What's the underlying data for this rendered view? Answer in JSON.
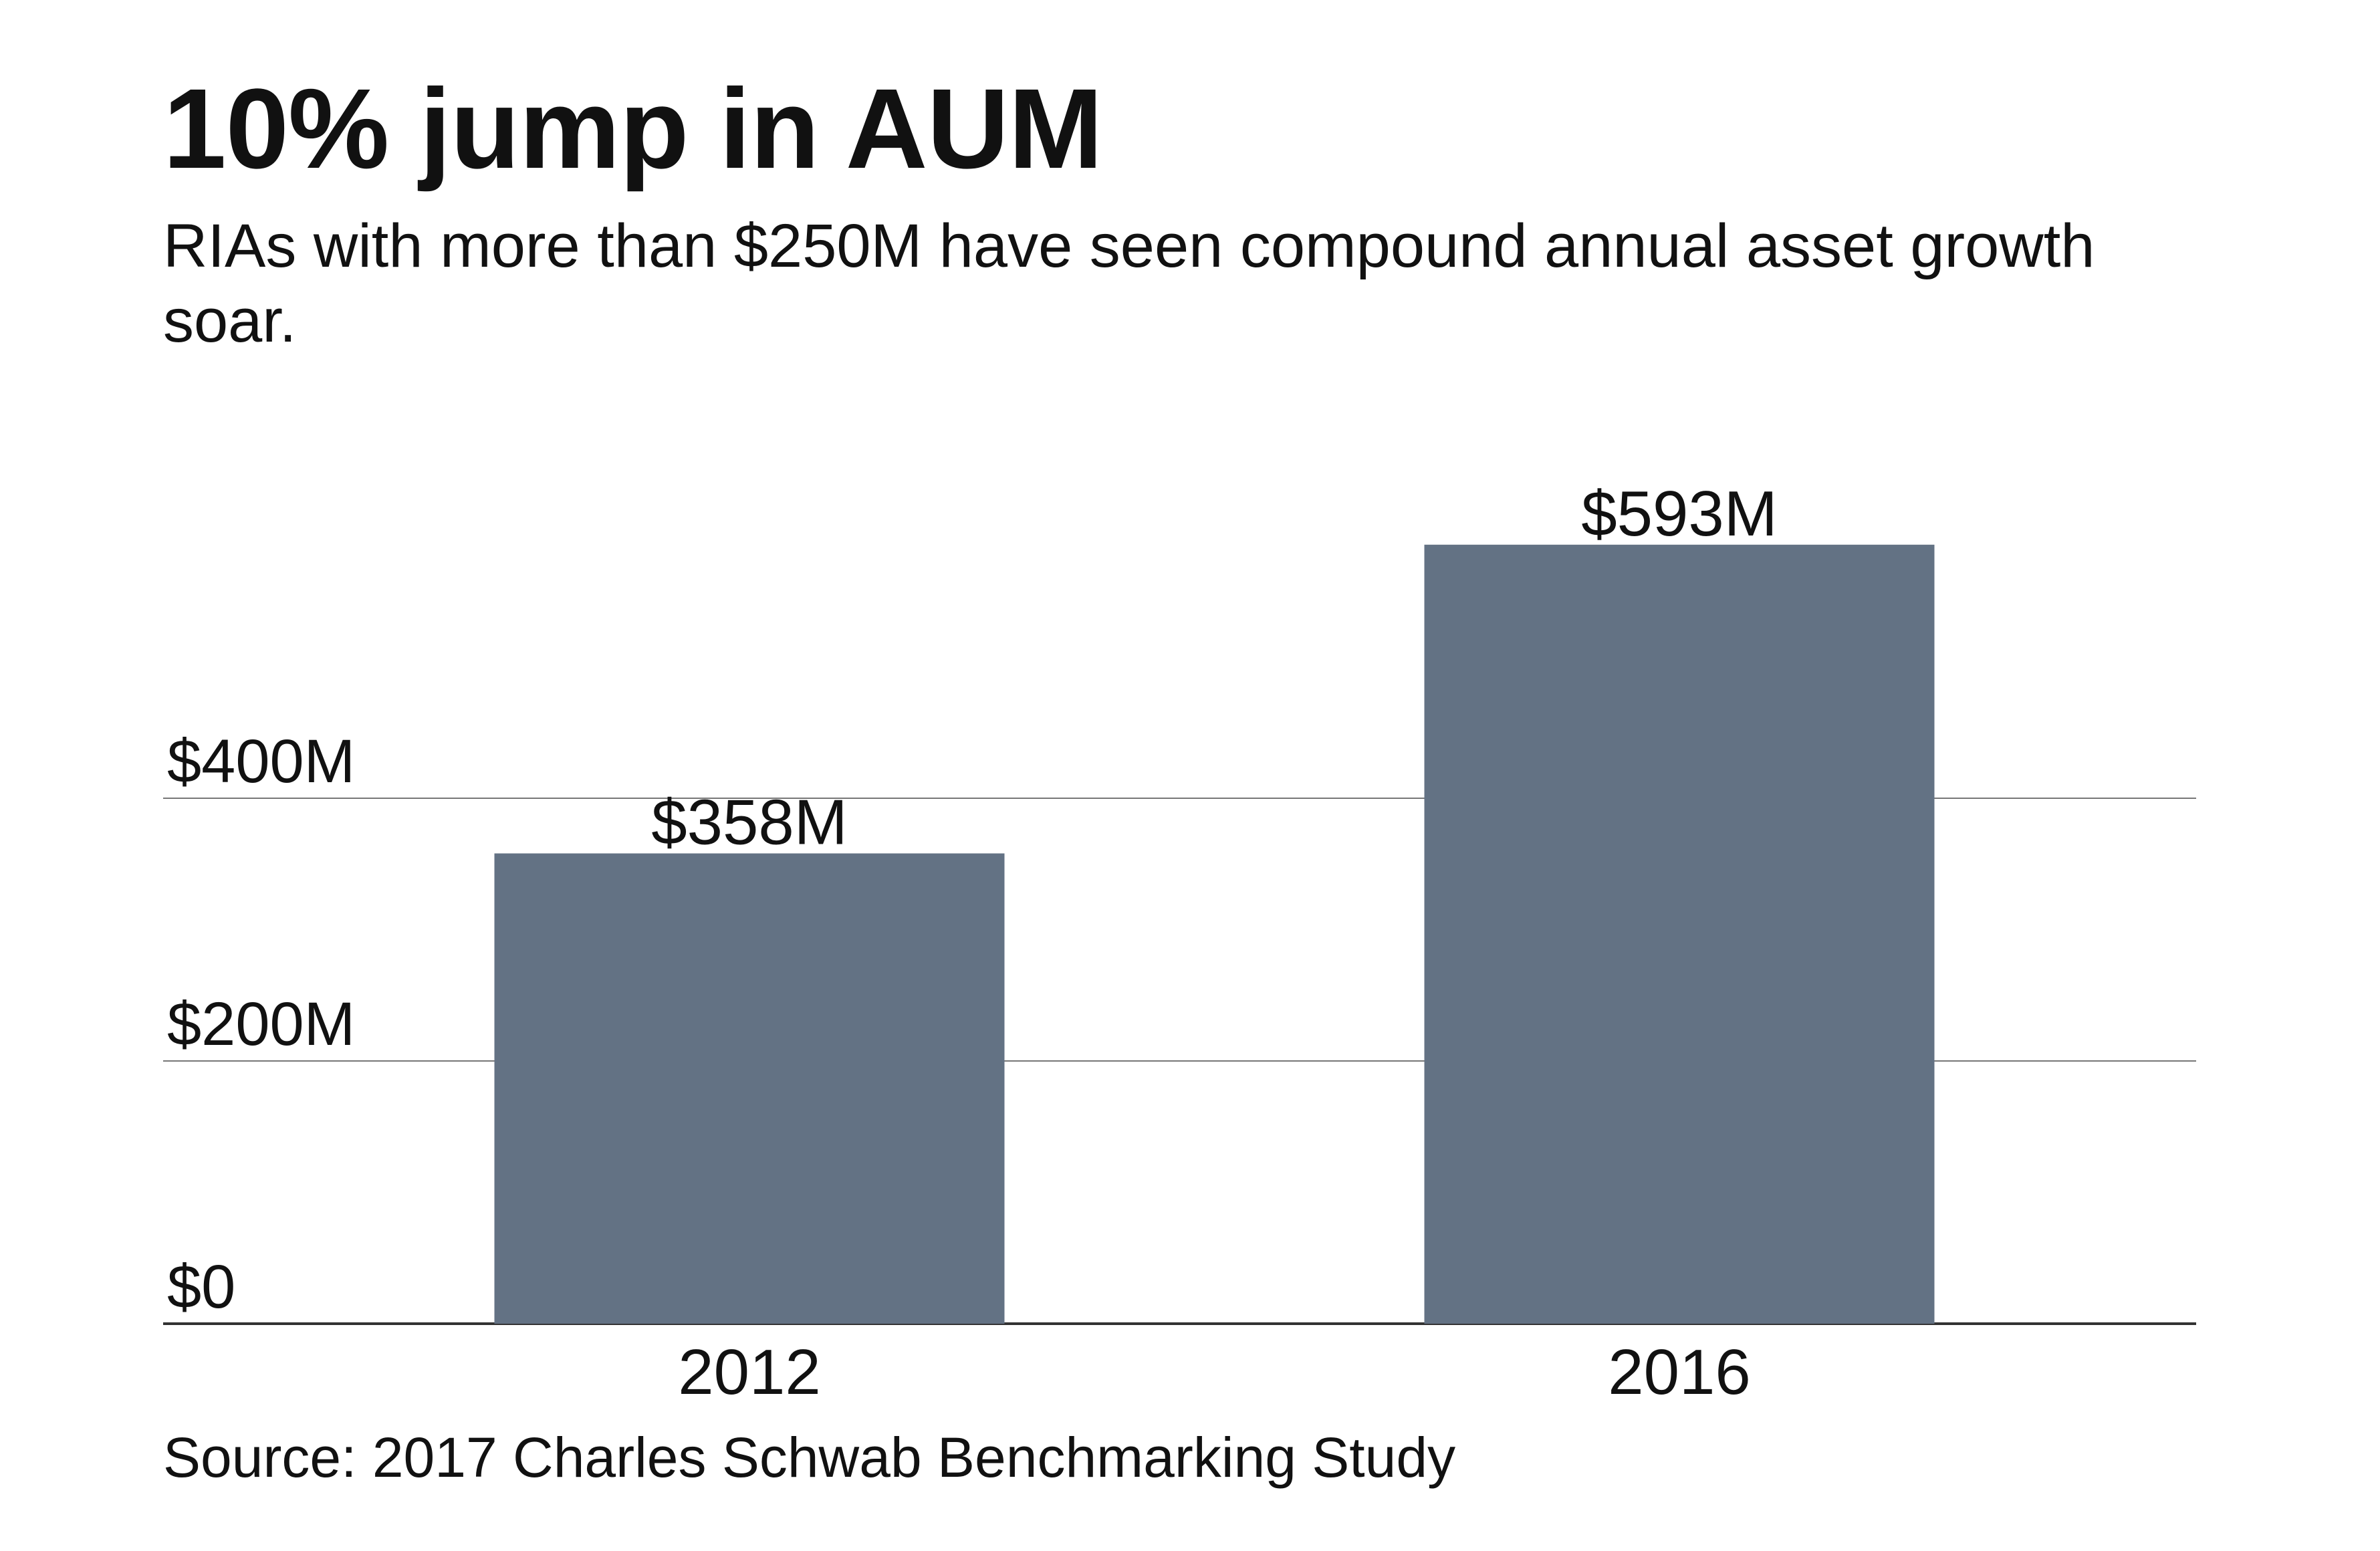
{
  "title": "10% jump in AUM",
  "subtitle": "RIAs with more than $250M have seen compound annual asset growth soar.",
  "source": "Source: 2017 Charles Schwab Benchmarking Study",
  "colors": {
    "bar": "#637284",
    "gridline": "#777777",
    "baseline": "#333333",
    "text": "#111111"
  },
  "chart_data": {
    "type": "bar",
    "categories": [
      "2012",
      "2016"
    ],
    "values": [
      358,
      593
    ],
    "value_labels": [
      "$358M",
      "$593M"
    ],
    "unit": "$M",
    "title": "10% jump in AUM",
    "subtitle": "RIAs with more than $250M have seen compound annual asset growth soar.",
    "xlabel": "",
    "ylabel": "",
    "ylim": [
      0,
      600
    ],
    "yticks": [
      0,
      200,
      400
    ],
    "ytick_labels": [
      "$0",
      "$200M",
      "$400M"
    ],
    "grid": true,
    "legend": "none"
  }
}
